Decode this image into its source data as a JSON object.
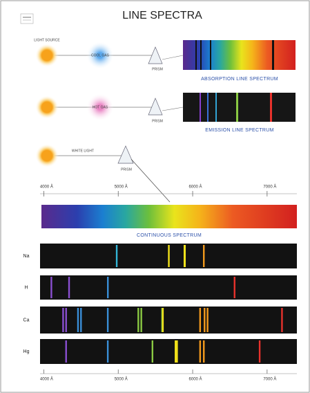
{
  "header": {
    "title": "LINE SPECTRA"
  },
  "diagram": {
    "absorption": {
      "source": "LIGHT SOURCE",
      "gas": "COOL GAS",
      "prism": "PRISM",
      "caption": "ABSORPTION LINE SPECTRUM"
    },
    "emission": {
      "gas": "HOT GAS",
      "prism": "PRISM",
      "caption": "EMISSION LINE SPECTRUM"
    },
    "continuous": {
      "source_label": "WHITE LIGHT",
      "prism": "PRISM",
      "caption": "CONTINUOUS SPECTRUM"
    }
  },
  "chart_data": {
    "type": "spectra",
    "xlim": [
      3950,
      7400
    ],
    "xticks": [
      {
        "value": 4000,
        "label": "4000 Å"
      },
      {
        "value": 5000,
        "label": "5000 Å"
      },
      {
        "value": 6000,
        "label": "6000 Å"
      },
      {
        "value": 7000,
        "label": "7000 Å"
      }
    ],
    "series": [
      {
        "name": "Na",
        "values": [
          4980,
          5680,
          5890,
          5896,
          6150
        ]
      },
      {
        "name": "H",
        "values": [
          4102,
          4340,
          4861,
          6563
        ]
      },
      {
        "name": "Ca",
        "values": [
          4260,
          4300,
          4460,
          4500,
          4860,
          5270,
          5310,
          5590,
          5600,
          6100,
          6160,
          6200,
          7200
        ]
      },
      {
        "name": "Hg",
        "values": [
          4300,
          4860,
          5460,
          5770,
          5790,
          6100,
          6150,
          6900
        ]
      }
    ]
  }
}
